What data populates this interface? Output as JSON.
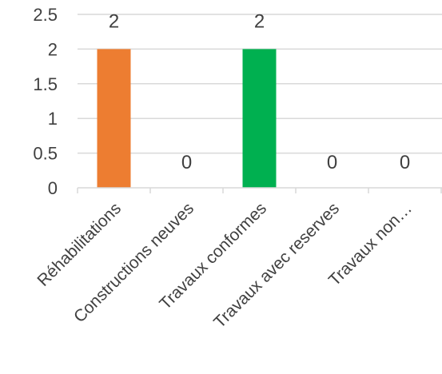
{
  "chart_data": {
    "type": "bar",
    "categories": [
      "Réhabilitations",
      "Constructions neuves",
      "Travaux conformes",
      "Travaux avec reserves",
      "Travaux non…"
    ],
    "values": [
      2,
      0,
      2,
      0,
      0
    ],
    "data_labels": [
      "2",
      "0",
      "2",
      "0",
      "0"
    ],
    "bar_colors": [
      "#ED7D31",
      "#ED7D31",
      "#00B050",
      "#00B050",
      "#00B050"
    ],
    "ylim": [
      0,
      2.5
    ],
    "yticks": [
      0,
      0.5,
      1,
      1.5,
      2,
      2.5
    ],
    "ytick_labels": [
      "0",
      "0.5",
      "1",
      "1.5",
      "2",
      "2.5"
    ],
    "grid": true,
    "gridline_color": "#d9d9d9",
    "text_color": "#404040",
    "title": "",
    "xlabel": "",
    "ylabel": "",
    "legend": "none"
  }
}
